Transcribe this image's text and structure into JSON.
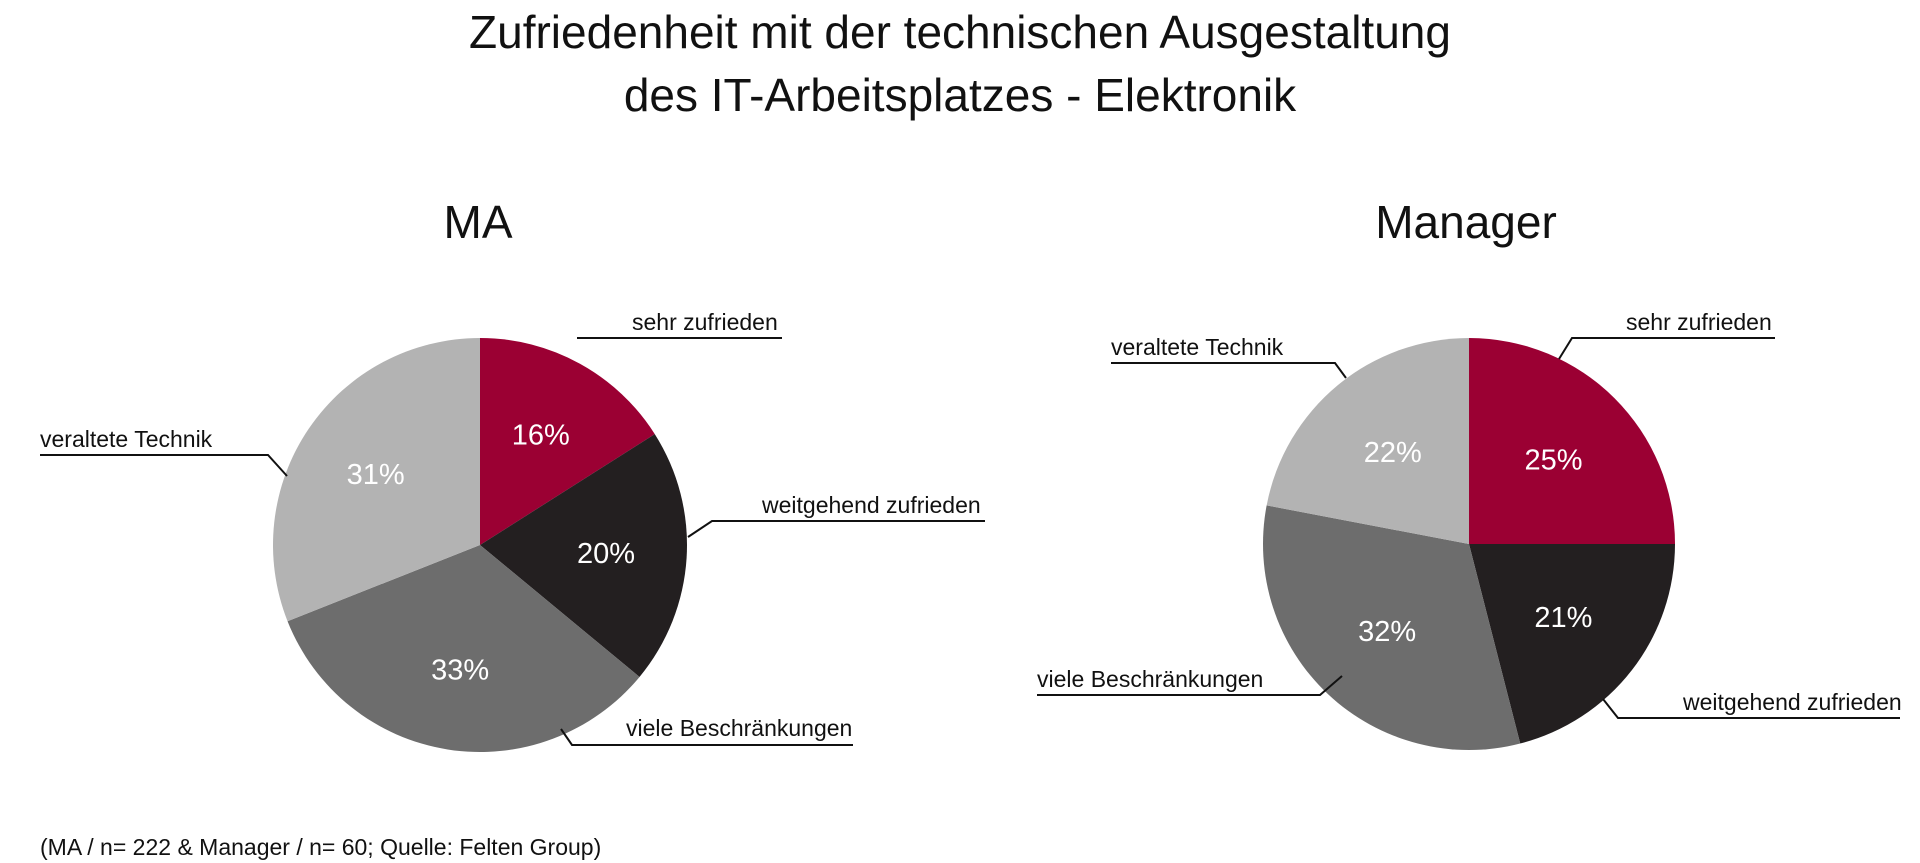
{
  "title_lines": [
    "Zufriedenheit mit der technischen Ausgestaltung",
    "des IT-Arbeitsplatzes - Elektronik"
  ],
  "footnote": "(MA / n= 222 & Manager / n= 60; Quelle: Felten Group)",
  "colors": {
    "sehr zufrieden": "#9b0033",
    "weitgehend zufrieden": "#231f20",
    "viele Beschränkungen": "#6d6d6d",
    "veraltete Technik": "#b3b3b3"
  },
  "chart_data": [
    {
      "type": "pie",
      "title": "MA",
      "categories": [
        "sehr zufrieden",
        "weitgehend zufrieden",
        "viele Beschränkungen",
        "veraltete Technik"
      ],
      "values": [
        16,
        20,
        33,
        31
      ],
      "value_labels": [
        "16%",
        "20%",
        "33%",
        "31%"
      ],
      "start": "12 o'clock",
      "direction": "clockwise"
    },
    {
      "type": "pie",
      "title": "Manager",
      "categories": [
        "sehr zufrieden",
        "weitgehend zufrieden",
        "viele Beschränkungen",
        "veraltete Technik"
      ],
      "values": [
        25,
        21,
        32,
        22
      ],
      "value_labels": [
        "25%",
        "21%",
        "32%",
        "22%"
      ],
      "start": "12 o'clock",
      "direction": "clockwise"
    }
  ]
}
